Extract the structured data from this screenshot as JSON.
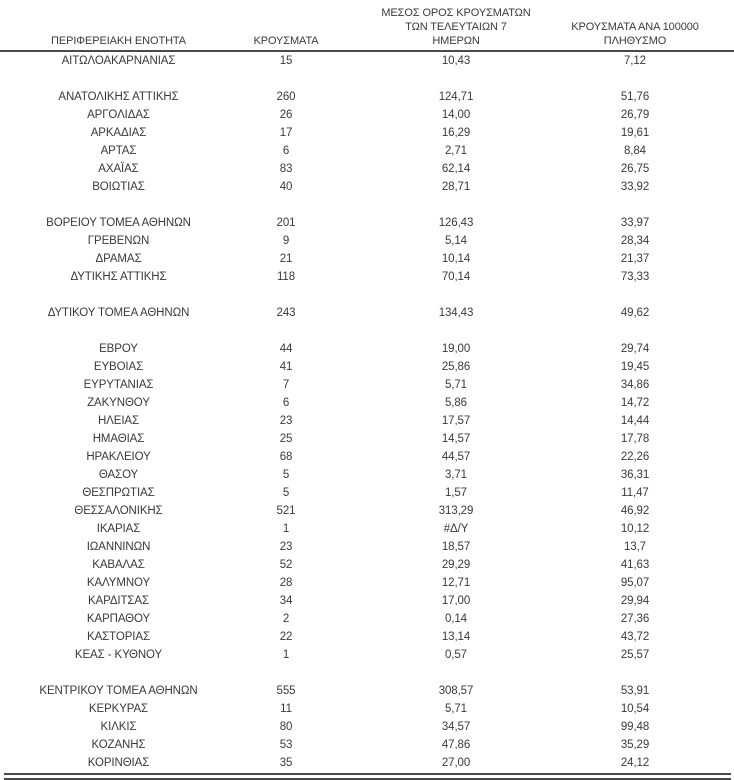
{
  "table": {
    "columns": [
      {
        "lines": [
          "ΠΕΡΙΦΕΡΕΙΑΚΗ ΕΝΟΤΗΤΑ"
        ]
      },
      {
        "lines": [
          "ΚΡΟΥΣΜΑΤΑ"
        ]
      },
      {
        "lines": [
          "ΜΕΣΟΣ ΟΡΟΣ ΚΡΟΥΣΜΑΤΩΝ",
          "ΤΩΝ ΤΕΛΕΥΤΑΙΩΝ 7",
          "ΗΜΕΡΩΝ"
        ]
      },
      {
        "lines": [
          "ΚΡΟΥΣΜΑΤΑ ΑΝΑ 100000",
          "ΠΛΗΘΥΣΜΟ"
        ]
      }
    ],
    "groups": [
      {
        "rows": [
          [
            "ΑΙΤΩΛΟΑΚΑΡΝΑΝΙΑΣ",
            "15",
            "10,43",
            "7,12"
          ]
        ]
      },
      {
        "rows": [
          [
            "ΑΝΑΤΟΛΙΚΗΣ ΑΤΤΙΚΗΣ",
            "260",
            "124,71",
            "51,76"
          ],
          [
            "ΑΡΓΟΛΙΔΑΣ",
            "26",
            "14,00",
            "26,79"
          ],
          [
            "ΑΡΚΑΔΙΑΣ",
            "17",
            "16,29",
            "19,61"
          ],
          [
            "ΑΡΤΑΣ",
            "6",
            "2,71",
            "8,84"
          ],
          [
            "ΑΧΑΪΑΣ",
            "83",
            "62,14",
            "26,75"
          ],
          [
            "ΒΟΙΩΤΙΑΣ",
            "40",
            "28,71",
            "33,92"
          ]
        ]
      },
      {
        "rows": [
          [
            "ΒΟΡΕΙΟΥ ΤΟΜΕΑ ΑΘΗΝΩΝ",
            "201",
            "126,43",
            "33,97"
          ],
          [
            "ΓΡΕΒΕΝΩΝ",
            "9",
            "5,14",
            "28,34"
          ],
          [
            "ΔΡΑΜΑΣ",
            "21",
            "10,14",
            "21,37"
          ],
          [
            "ΔΥΤΙΚΗΣ ΑΤΤΙΚΗΣ",
            "118",
            "70,14",
            "73,33"
          ]
        ]
      },
      {
        "rows": [
          [
            "ΔΥΤΙΚΟΥ ΤΟΜΕΑ ΑΘΗΝΩΝ",
            "243",
            "134,43",
            "49,62"
          ]
        ]
      },
      {
        "rows": [
          [
            "ΕΒΡΟΥ",
            "44",
            "19,00",
            "29,74"
          ],
          [
            "ΕΥΒΟΙΑΣ",
            "41",
            "25,86",
            "19,45"
          ],
          [
            "ΕΥΡΥΤΑΝΙΑΣ",
            "7",
            "5,71",
            "34,86"
          ],
          [
            "ΖΑΚΥΝΘΟΥ",
            "6",
            "5,86",
            "14,72"
          ],
          [
            "ΗΛΕΙΑΣ",
            "23",
            "17,57",
            "14,44"
          ],
          [
            "ΗΜΑΘΙΑΣ",
            "25",
            "14,57",
            "17,78"
          ],
          [
            "ΗΡΑΚΛΕΙΟΥ",
            "68",
            "44,57",
            "22,26"
          ],
          [
            "ΘΑΣΟΥ",
            "5",
            "3,71",
            "36,31"
          ],
          [
            "ΘΕΣΠΡΩΤΙΑΣ",
            "5",
            "1,57",
            "11,47"
          ],
          [
            "ΘΕΣΣΑΛΟΝΙΚΗΣ",
            "521",
            "313,29",
            "46,92"
          ],
          [
            "ΙΚΑΡΙΑΣ",
            "1",
            "#Δ/Υ",
            "10,12"
          ],
          [
            "ΙΩΑΝΝΙΝΩΝ",
            "23",
            "18,57",
            "13,7"
          ],
          [
            "ΚΑΒΑΛΑΣ",
            "52",
            "29,29",
            "41,63"
          ],
          [
            "ΚΑΛΥΜΝΟΥ",
            "28",
            "12,71",
            "95,07"
          ],
          [
            "ΚΑΡΔΙΤΣΑΣ",
            "34",
            "17,00",
            "29,94"
          ],
          [
            "ΚΑΡΠΑΘΟΥ",
            "2",
            "0,14",
            "27,36"
          ],
          [
            "ΚΑΣΤΟΡΙΑΣ",
            "22",
            "13,14",
            "43,72"
          ],
          [
            "ΚΕΑΣ - ΚΥΘΝΟΥ",
            "1",
            "0,57",
            "25,57"
          ]
        ]
      },
      {
        "rows": [
          [
            "ΚΕΝΤΡΙΚΟΥ ΤΟΜΕΑ ΑΘΗΝΩΝ",
            "555",
            "308,57",
            "53,91"
          ],
          [
            "ΚΕΡΚΥΡΑΣ",
            "11",
            "5,71",
            "10,54"
          ],
          [
            "ΚΙΛΚΙΣ",
            "80",
            "34,57",
            "99,48"
          ],
          [
            "ΚΟΖΑΝΗΣ",
            "53",
            "47,86",
            "35,29"
          ],
          [
            "ΚΟΡΙΝΘΙΑΣ",
            "35",
            "27,00",
            "24,12"
          ]
        ]
      }
    ],
    "colors": {
      "text": "#3a3a3a",
      "rule": "#4a4a4a",
      "background": "#ffffff"
    }
  }
}
